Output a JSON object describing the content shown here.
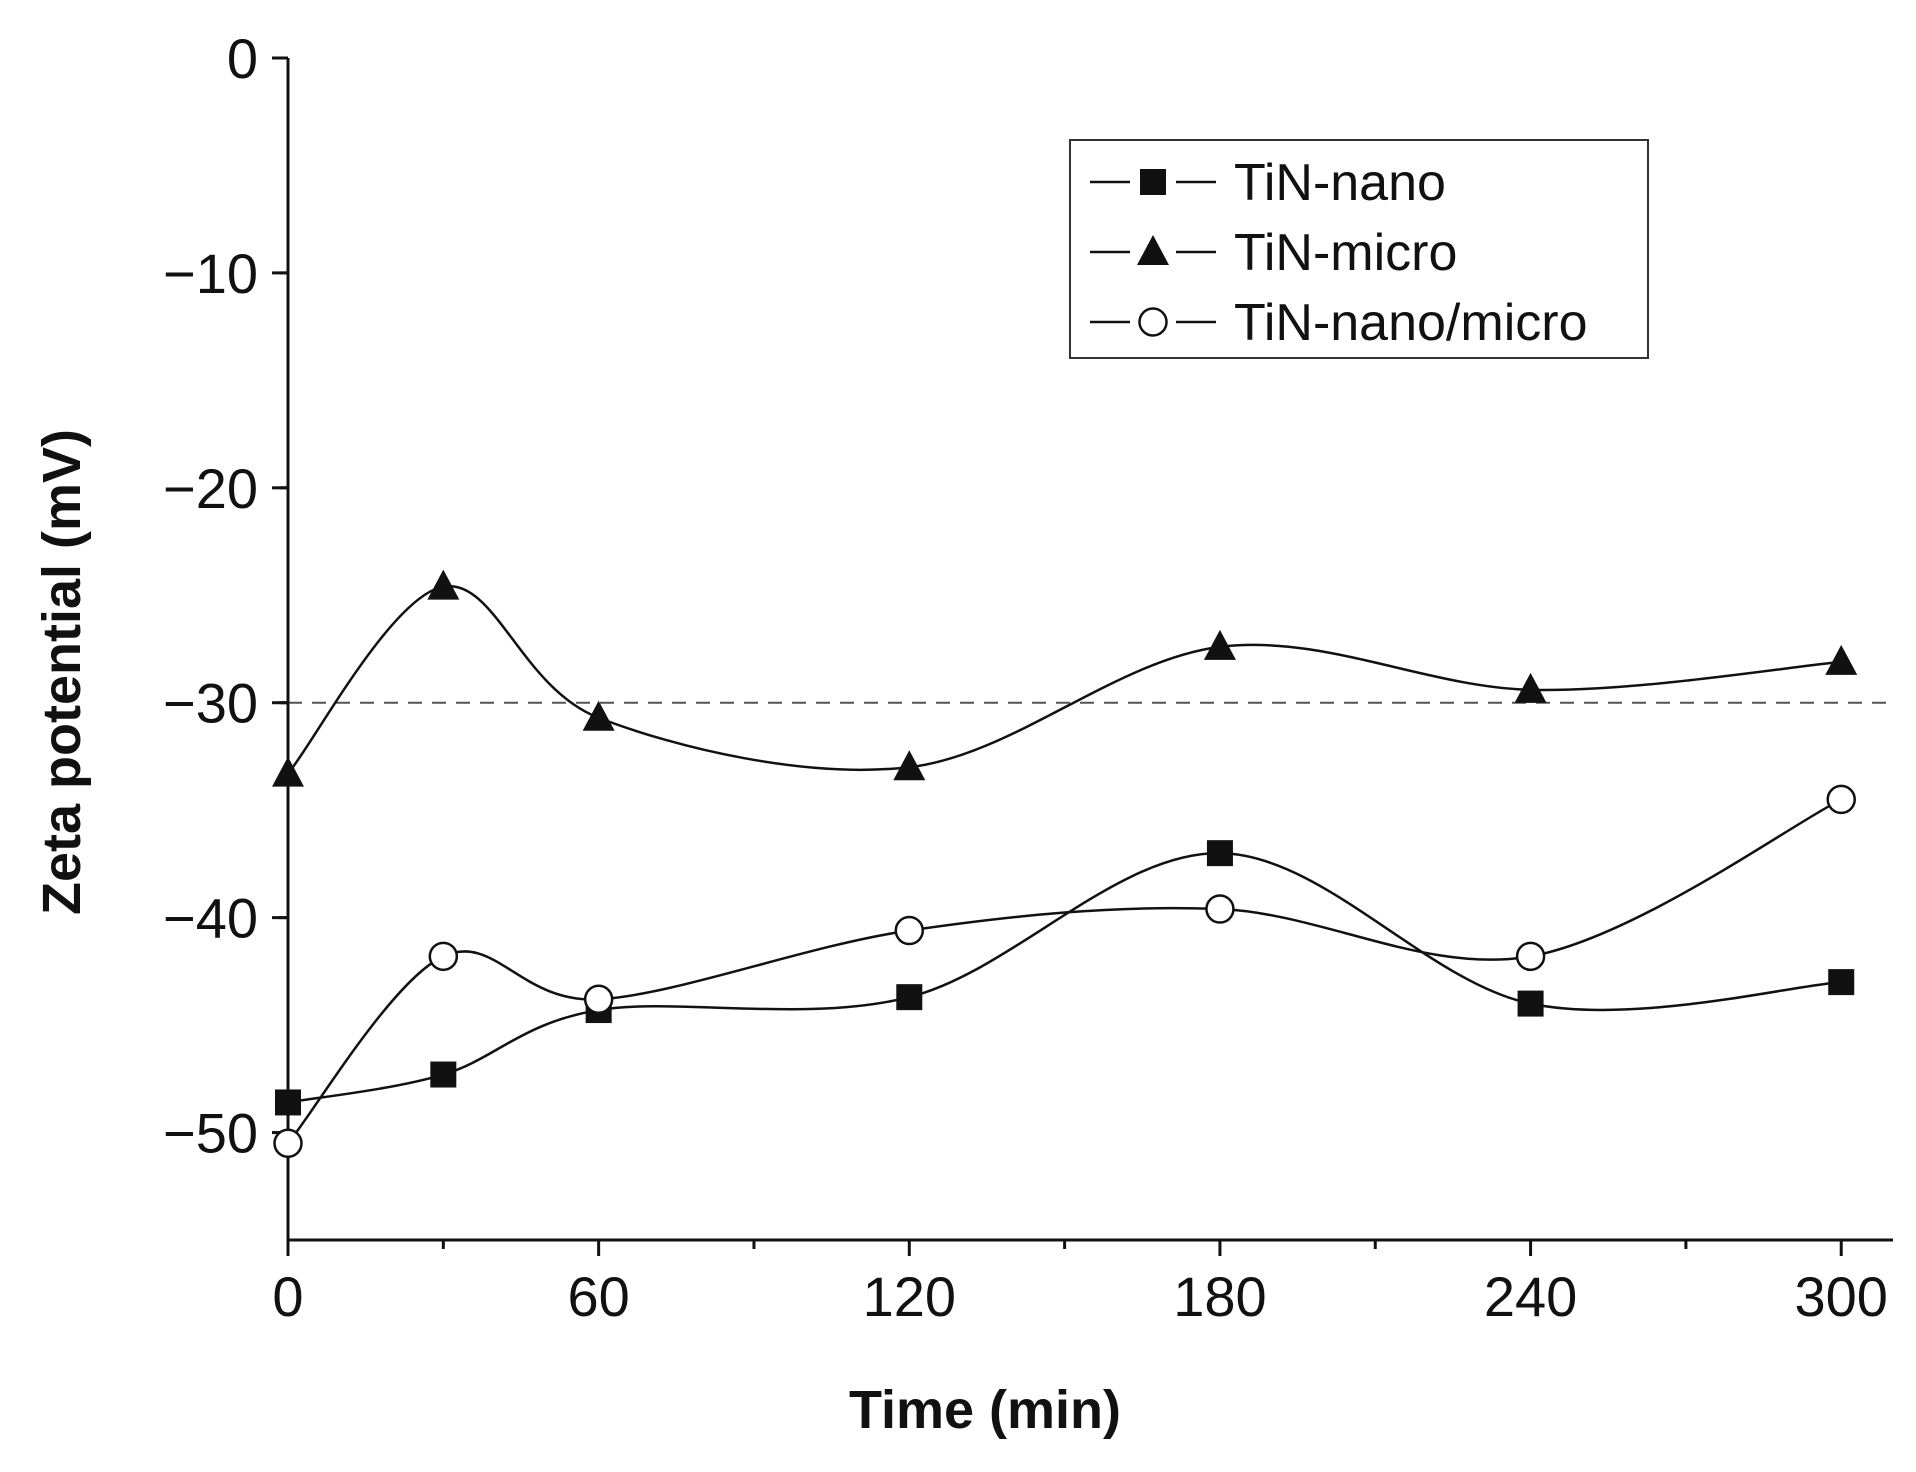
{
  "chart_data": {
    "type": "scatter",
    "xlabel": "Time (min)",
    "ylabel": "Zeta potential (mV)",
    "xlim": [
      0,
      310
    ],
    "ylim": [
      -55,
      0
    ],
    "xticks": [
      0,
      60,
      120,
      180,
      240,
      300
    ],
    "yticks": [
      0,
      -10,
      -20,
      -30,
      -40,
      -50
    ],
    "xtick_labels": [
      "0",
      "60",
      "120",
      "180",
      "240",
      "300"
    ],
    "ytick_labels": [
      "0",
      "−10",
      "−20",
      "−30",
      "−40",
      "−50"
    ],
    "reference_line": {
      "y": -30,
      "style": "dashed"
    },
    "legend_position": "top-right",
    "series": [
      {
        "name": "TiN-nano",
        "marker": "filled-square",
        "x": [
          0,
          30,
          60,
          120,
          180,
          240,
          300
        ],
        "y": [
          -48.6,
          -47.3,
          -44.3,
          -43.7,
          -37.0,
          -44.0,
          -43.0
        ]
      },
      {
        "name": "TiN-micro",
        "marker": "filled-triangle",
        "x": [
          0,
          30,
          60,
          120,
          180,
          240,
          300
        ],
        "y": [
          -33.3,
          -24.6,
          -30.7,
          -33.0,
          -27.4,
          -29.4,
          -28.1
        ]
      },
      {
        "name": "TiN-nano/micro",
        "marker": "open-circle",
        "x": [
          0,
          30,
          60,
          120,
          180,
          240,
          300
        ],
        "y": [
          -50.5,
          -41.8,
          -43.8,
          -40.6,
          -39.6,
          -41.8,
          -34.5
        ]
      }
    ],
    "colors": {
      "ink": "#111111",
      "reference": "#555555"
    }
  }
}
